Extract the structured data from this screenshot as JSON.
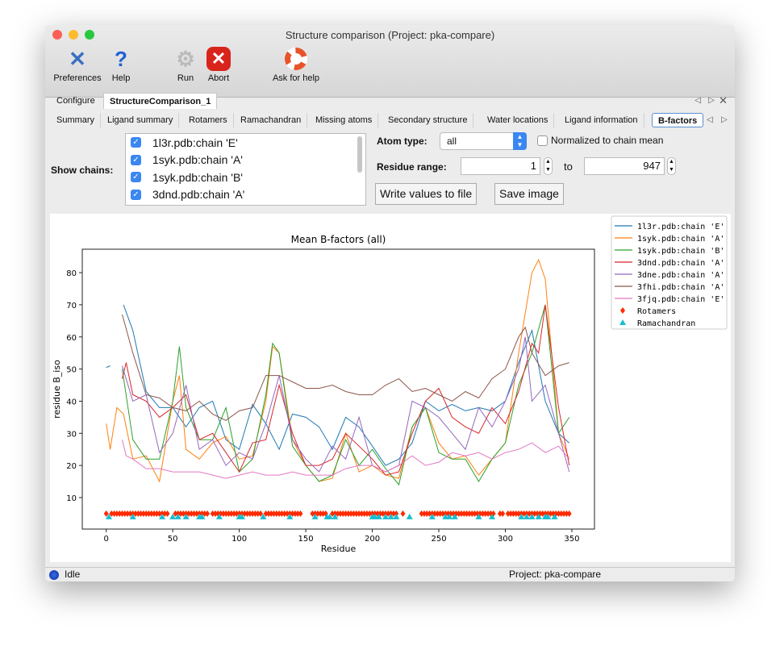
{
  "window": {
    "title": "Structure comparison (Project: pka-compare)"
  },
  "toolbar": [
    {
      "label": "Preferences",
      "icon": "preferences-icon"
    },
    {
      "label": "Help",
      "icon": "help-icon"
    },
    {
      "label": "Run",
      "icon": "gear-icon"
    },
    {
      "label": "Abort",
      "icon": "abort-icon"
    },
    {
      "label": "Ask for help",
      "icon": "lifebuoy-icon"
    }
  ],
  "tabs": [
    "Configure",
    "StructureComparison_1"
  ],
  "active_tab": "StructureComparison_1",
  "subtabs": [
    "Summary",
    "Ligand summary",
    "Rotamers",
    "Ramachandran",
    "Missing atoms",
    "Secondary structure",
    "Water locations",
    "Ligand information",
    "B-factors"
  ],
  "active_subtab": "B-factors",
  "controls": {
    "show_chains_label": "Show chains:",
    "chains": [
      {
        "label": "1l3r.pdb:chain 'E'",
        "checked": true
      },
      {
        "label": "1syk.pdb:chain 'A'",
        "checked": true
      },
      {
        "label": "1syk.pdb:chain 'B'",
        "checked": true
      },
      {
        "label": "3dnd.pdb:chain 'A'",
        "checked": true
      }
    ],
    "atom_type_label": "Atom type:",
    "atom_type": "all",
    "normalized_label": "Normalized to chain mean",
    "normalized": false,
    "residue_range_label": "Residue range:",
    "range_from": "1",
    "range_to_label": "to",
    "range_to": "947",
    "write_button": "Write values to file",
    "save_button": "Save image"
  },
  "chart_data": {
    "type": "line",
    "title": "Mean B-factors (all)",
    "xlabel": "Residue",
    "ylabel": "residue B_iso",
    "xlim": [
      -18,
      367
    ],
    "ylim": [
      0.2,
      87.3
    ],
    "xticks": [
      0,
      50,
      100,
      150,
      200,
      250,
      300,
      350
    ],
    "yticks": [
      10,
      20,
      30,
      40,
      50,
      60,
      70,
      80
    ],
    "legend_position": "right-outside-top",
    "series": [
      {
        "name": "1l3r.pdb:chain 'E'",
        "color": "#1f77b4",
        "x": [
          0,
          3,
          null,
          13,
          20,
          30,
          40,
          50,
          60,
          70,
          80,
          90,
          100,
          110,
          120,
          130,
          140,
          150,
          160,
          170,
          180,
          190,
          200,
          210,
          220,
          230,
          240,
          250,
          260,
          270,
          280,
          290,
          300,
          310,
          320,
          330,
          340,
          348
        ],
        "y": [
          50.5,
          51,
          null,
          70,
          62,
          43,
          38,
          38,
          32,
          38,
          40,
          28,
          25,
          39,
          33,
          25,
          36,
          35,
          32,
          25,
          35,
          32,
          26,
          20,
          22,
          27,
          40,
          37,
          39,
          37,
          38,
          37,
          40,
          52,
          62,
          40,
          30,
          27
        ]
      },
      {
        "name": "1syk.pdb:chain 'A'",
        "color": "#ff7f0e",
        "x": [
          0,
          3,
          8,
          13,
          20,
          30,
          40,
          50,
          55,
          60,
          70,
          80,
          90,
          100,
          110,
          120,
          125,
          130,
          140,
          150,
          160,
          170,
          180,
          190,
          200,
          210,
          220,
          230,
          240,
          250,
          260,
          270,
          280,
          290,
          300,
          310,
          320,
          325,
          330,
          340,
          348
        ],
        "y": [
          33,
          25,
          38,
          36,
          22,
          23,
          15,
          40,
          48,
          25,
          22,
          27,
          29,
          22,
          23,
          40,
          57,
          55,
          28,
          20,
          15,
          16,
          30,
          18,
          20,
          17,
          16,
          32,
          38,
          27,
          22,
          23,
          17,
          22,
          27,
          55,
          80,
          84,
          78,
          30,
          22
        ]
      },
      {
        "name": "1syk.pdb:chain 'B'",
        "color": "#2ca02c",
        "x": [
          12,
          20,
          30,
          40,
          50,
          55,
          60,
          70,
          80,
          90,
          100,
          110,
          120,
          125,
          130,
          140,
          150,
          160,
          170,
          180,
          190,
          200,
          210,
          220,
          230,
          240,
          250,
          260,
          270,
          280,
          290,
          300,
          310,
          320,
          330,
          340,
          348
        ],
        "y": [
          50,
          28,
          22,
          22,
          40,
          57,
          38,
          28,
          28,
          38,
          18,
          22,
          42,
          58,
          55,
          26,
          20,
          15,
          17,
          28,
          20,
          25,
          19,
          14,
          32,
          38,
          24,
          22,
          22,
          15,
          22,
          27,
          45,
          55,
          70,
          30,
          35
        ]
      },
      {
        "name": "3dnd.pdb:chain 'A'",
        "color": "#d62728",
        "x": [
          12,
          15,
          20,
          30,
          40,
          50,
          60,
          70,
          80,
          90,
          100,
          110,
          120,
          130,
          140,
          150,
          160,
          170,
          180,
          190,
          200,
          210,
          220,
          230,
          240,
          250,
          260,
          270,
          280,
          290,
          300,
          310,
          320,
          325,
          330,
          340,
          348
        ],
        "y": [
          47,
          52,
          42,
          40,
          35,
          38,
          42,
          28,
          30,
          24,
          18,
          27,
          28,
          45,
          30,
          20,
          20,
          22,
          30,
          26,
          22,
          17,
          18,
          30,
          40,
          44,
          35,
          32,
          30,
          38,
          33,
          43,
          58,
          55,
          70,
          38,
          20
        ]
      },
      {
        "name": "3dne.pdb:chain 'A'",
        "color": "#9467bd",
        "x": [
          12,
          20,
          30,
          40,
          50,
          60,
          70,
          80,
          90,
          100,
          110,
          120,
          130,
          140,
          150,
          160,
          170,
          180,
          190,
          200,
          210,
          220,
          230,
          240,
          250,
          260,
          270,
          280,
          290,
          300,
          310,
          315,
          320,
          330,
          340,
          348
        ],
        "y": [
          51,
          40,
          42,
          24,
          30,
          45,
          25,
          28,
          20,
          24,
          22,
          33,
          48,
          28,
          22,
          18,
          26,
          22,
          35,
          20,
          18,
          20,
          40,
          38,
          35,
          30,
          25,
          38,
          32,
          40,
          50,
          60,
          40,
          45,
          30,
          18
        ]
      },
      {
        "name": "3fhi.pdb:chain 'A'",
        "color": "#8c564b",
        "x": [
          12,
          20,
          30,
          40,
          50,
          60,
          70,
          80,
          90,
          100,
          110,
          120,
          130,
          140,
          150,
          160,
          170,
          180,
          190,
          200,
          210,
          220,
          230,
          240,
          250,
          260,
          270,
          280,
          290,
          300,
          310,
          315,
          320,
          330,
          340,
          348
        ],
        "y": [
          67,
          55,
          42,
          41,
          38,
          37,
          40,
          36,
          34,
          37,
          38,
          48,
          48,
          46,
          44,
          44,
          45,
          43,
          42,
          42,
          45,
          47,
          43,
          44,
          42,
          40,
          43,
          41,
          47,
          50,
          60,
          63,
          55,
          48,
          51,
          52
        ]
      },
      {
        "name": "3fjq.pdb:chain 'E'",
        "color": "#e377c2",
        "x": [
          12,
          15,
          20,
          30,
          40,
          50,
          60,
          70,
          80,
          90,
          100,
          110,
          120,
          130,
          140,
          150,
          160,
          170,
          180,
          190,
          200,
          210,
          220,
          230,
          240,
          250,
          260,
          270,
          280,
          290,
          300,
          310,
          320,
          330,
          340,
          348
        ],
        "y": [
          28,
          23,
          22,
          19,
          19,
          18,
          18,
          18,
          17,
          16,
          17,
          18,
          17,
          17,
          18,
          17,
          17,
          17,
          19,
          20,
          20,
          18,
          20,
          23,
          20,
          21,
          24,
          23,
          24,
          22,
          24,
          25,
          27,
          24,
          26,
          22
        ]
      }
    ],
    "markers": [
      {
        "name": "Rotamers",
        "color": "#ff2a00",
        "shape": "diamond",
        "y": 5,
        "x": [
          0,
          4,
          6,
          8,
          10,
          12,
          14,
          16,
          18,
          20,
          22,
          24,
          26,
          28,
          30,
          32,
          34,
          36,
          38,
          40,
          42,
          44,
          46,
          52,
          54,
          56,
          58,
          60,
          62,
          64,
          66,
          68,
          70,
          72,
          74,
          76,
          80,
          82,
          84,
          86,
          88,
          90,
          92,
          94,
          96,
          98,
          100,
          102,
          104,
          106,
          108,
          110,
          112,
          114,
          116,
          120,
          122,
          124,
          126,
          128,
          130,
          132,
          134,
          136,
          138,
          140,
          142,
          144,
          146,
          155,
          157,
          159,
          161,
          163,
          165,
          170,
          172,
          174,
          176,
          178,
          180,
          182,
          184,
          186,
          188,
          190,
          192,
          194,
          196,
          198,
          200,
          202,
          204,
          206,
          208,
          210,
          212,
          214,
          216,
          218,
          223,
          237,
          239,
          241,
          243,
          245,
          247,
          249,
          251,
          253,
          255,
          257,
          259,
          261,
          263,
          265,
          267,
          269,
          271,
          273,
          275,
          277,
          279,
          281,
          283,
          285,
          287,
          289,
          291,
          296,
          298,
          302,
          304,
          306,
          308,
          310,
          312,
          314,
          316,
          318,
          320,
          322,
          324,
          326,
          328,
          330,
          332,
          334,
          336,
          338,
          340,
          342,
          344,
          346,
          348
        ]
      },
      {
        "name": "Ramachandran",
        "color": "#17becf",
        "shape": "triangle",
        "y": 4,
        "x": [
          2,
          20,
          42,
          50,
          54,
          60,
          70,
          72,
          85,
          100,
          102,
          118,
          138,
          157,
          166,
          168,
          172,
          200,
          202,
          205,
          210,
          214,
          218,
          228,
          245,
          255,
          258,
          262,
          280,
          290,
          312,
          316,
          320,
          325,
          330,
          332,
          337
        ]
      }
    ]
  },
  "status": {
    "text": "Idle",
    "project": "Project: pka-compare"
  }
}
